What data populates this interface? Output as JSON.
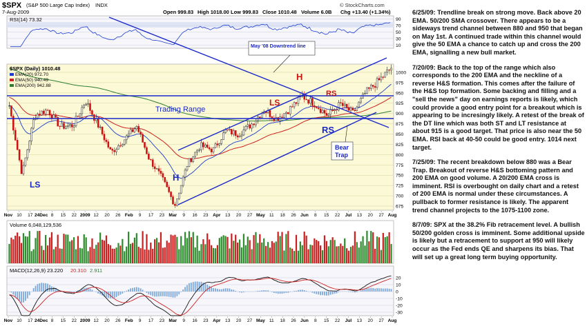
{
  "chart_data": {
    "type": "candlestick",
    "symbol": "$SPX",
    "symbol_desc": "(S&P 500 Large Cap Index)",
    "exchange": "INDX",
    "date": "7-Aug-2009",
    "ohlc_header": {
      "open": "Open 999.83",
      "high": "High 1018.00",
      "low": "Low 999.83",
      "close": "Close 1010.48",
      "volume": "Volume 6.0B",
      "chg": "Chg +13.40 (+1.34%)"
    },
    "watermark": "© StockCharts.com",
    "rsi_label": "RSI(14) 73.32",
    "price_label": "$SPX (Daily) 1010.48",
    "ema_labels": [
      {
        "text": "EMA(20) 972.70",
        "color": "#1a3bd0"
      },
      {
        "text": "EMA(50) 940.49",
        "color": "#cc2020"
      },
      {
        "text": "EMA(200) 942.88",
        "color": "#2e7d32"
      }
    ],
    "volume_label": "Volume 6,048,129,536",
    "macd_label": "MACD(12,26,9) 23.220",
    "macd_signal": "20.310",
    "macd_hist": "2.911",
    "price_ticks": [
      "1000",
      "975",
      "950",
      "925",
      "900",
      "875",
      "850",
      "825",
      "800",
      "775",
      "750",
      "725",
      "700",
      "675"
    ],
    "rsi_ticks": [
      "90",
      "70",
      "50",
      "30",
      "10"
    ],
    "macd_ticks": [
      "20",
      "10",
      "0",
      "-10",
      "-20",
      "-30"
    ],
    "date_ticks": [
      "Nov",
      "10",
      "17",
      "24Dec",
      "8",
      "15",
      "22",
      "2009",
      "12",
      "20",
      "26",
      "Feb",
      "9",
      "17",
      "23",
      "Mar",
      "9",
      "16",
      "23",
      "Apr",
      "13",
      "20",
      "27",
      "May",
      "11",
      "18",
      "26",
      "Jun",
      "8",
      "15",
      "22",
      "Jul",
      "13",
      "20",
      "27",
      "Aug"
    ],
    "annotations": {
      "ls1": "LS",
      "h1": "H",
      "trading_range": "Trading Range",
      "downtrend": "May '08 Downtrend line",
      "ls2": "LS",
      "h2": "H",
      "rs2": "RS",
      "rs1": "RS",
      "bear_trap": "Bear Trap"
    },
    "price_series": [
      {
        "d": "Nov 10",
        "c": 919
      },
      {
        "d": "Nov 20",
        "c": 752
      },
      {
        "d": "Nov 28",
        "c": 896
      },
      {
        "d": "Dec 8",
        "c": 909
      },
      {
        "d": "Dec 15",
        "c": 868
      },
      {
        "d": "Dec 22",
        "c": 871
      },
      {
        "d": "Jan 2",
        "c": 931
      },
      {
        "d": "Jan 12",
        "c": 870
      },
      {
        "d": "Jan 20",
        "c": 805
      },
      {
        "d": "Jan 26",
        "c": 836
      },
      {
        "d": "Feb 9",
        "c": 869
      },
      {
        "d": "Feb 17",
        "c": 789
      },
      {
        "d": "Feb 23",
        "c": 743
      },
      {
        "d": "Mar 9",
        "c": 677
      },
      {
        "d": "Mar 16",
        "c": 778
      },
      {
        "d": "Mar 23",
        "c": 822
      },
      {
        "d": "Apr 1",
        "c": 811
      },
      {
        "d": "Apr 13",
        "c": 858
      },
      {
        "d": "Apr 20",
        "c": 850
      },
      {
        "d": "Apr 27",
        "c": 873
      },
      {
        "d": "May 11",
        "c": 909
      },
      {
        "d": "May 18",
        "c": 887
      },
      {
        "d": "May 26",
        "c": 910
      },
      {
        "d": "Jun 8",
        "c": 942
      },
      {
        "d": "Jun 15",
        "c": 923
      },
      {
        "d": "Jun 22",
        "c": 895
      },
      {
        "d": "Jul 1",
        "c": 923
      },
      {
        "d": "Jul 13",
        "c": 901
      },
      {
        "d": "Jul 20",
        "c": 951
      },
      {
        "d": "Jul 27",
        "c": 979
      },
      {
        "d": "Aug 7",
        "c": 1010
      }
    ],
    "ylim": [
      665,
      1020
    ],
    "rsi_ylim": [
      0,
      100
    ],
    "macd_ylim": [
      -35,
      25
    ]
  },
  "notes": [
    "6/25/09: Trendline break on strong move. Back above 20 EMA. 50/200 SMA crossover. There appears to be a sideways trend channel between 880 and 950 that began on May 1st. A continued trade within this channel would give the 50 EMA a chance to catch up and cross the 200 EMA, signalling a new bull market.",
    "7/20/09: Back to the top of the range which also corresponds to the 200 EMA and the neckline of a reverse H&S formation. This comes after the failure of the H&S top formation. Some backing and filling and a \"sell the news\" day on earnings reports is likely, which could provide a good entry point for a breakout which is appearing to be incresingly likely. A retest of the break of the DT line which was both ST and LT resistance at about 915 is a good target. That price is also near the 50 EMA. RSI back at 40-50 could be good entry. 1014 next target.",
    "7/25/09: The recent breakdown below 880 was a Bear Trap. Breakout of reverse H&S bottoming pattern and 200 EMA on good volume. A 20/200 EMA cross is imminent. RSI is overbought on daily chart and a retest of 200 EMA is normal under these circumstances. A pullback to former resistance is likely. The apparent trend channel projects to the 1075-1100 zone.",
    "8/7/09: SPX at the 38.2% Fib retracement level. A bullish 50/200 golden cross is imminent. Some additional upside is likely but a retracement to support at 950 will likely occur as the Fed ends QE and sharpens its bias. That will set up a great long term buying opportunity."
  ]
}
